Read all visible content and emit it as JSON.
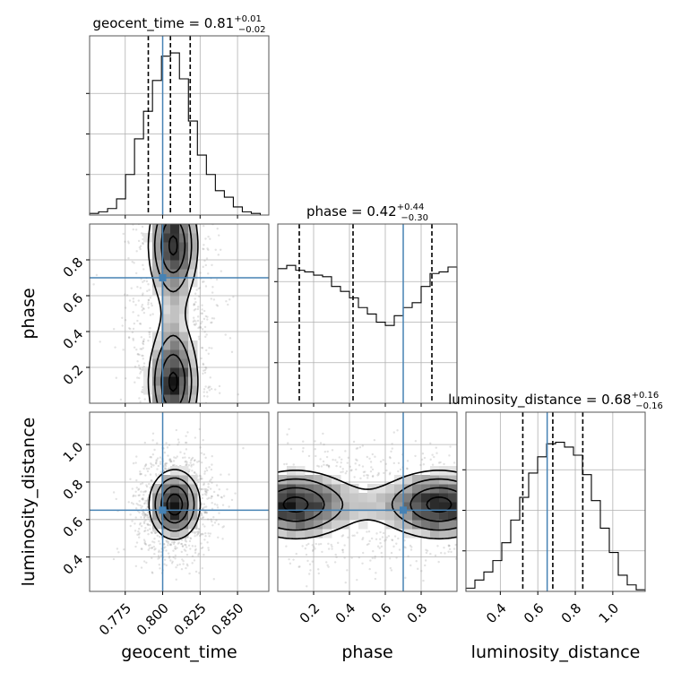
{
  "chart_data": {
    "type": "corner",
    "parameters": [
      "geocent_time",
      "phase",
      "luminosity_distance"
    ],
    "truths": [
      0.8,
      0.7,
      0.65
    ],
    "colors": {
      "truth": "#4682b4",
      "line": "#000000",
      "grid": "#b0b0b0",
      "scatter": "#8c8c8c"
    },
    "grid": true,
    "ranges": {
      "geocent_time": [
        0.7512,
        0.8709
      ],
      "phase": [
        0.0,
        1.0
      ],
      "luminosity_distance": [
        0.2167,
        1.1727
      ]
    },
    "ticks": {
      "geocent_time": [
        {
          "v": 0.775,
          "label": "0.775"
        },
        {
          "v": 0.8,
          "label": "0.800"
        },
        {
          "v": 0.825,
          "label": "0.825"
        },
        {
          "v": 0.85,
          "label": "0.850"
        }
      ],
      "phase": [
        {
          "v": 0.2,
          "label": "0.2"
        },
        {
          "v": 0.4,
          "label": "0.4"
        },
        {
          "v": 0.6,
          "label": "0.6"
        },
        {
          "v": 0.8,
          "label": "0.8"
        }
      ],
      "luminosity_distance": [
        {
          "v": 0.4,
          "label": "0.4"
        },
        {
          "v": 0.6,
          "label": "0.6"
        },
        {
          "v": 0.8,
          "label": "0.8"
        },
        {
          "v": 1.0,
          "label": "1.0"
        }
      ]
    },
    "axis_labels": [
      "geocent_time",
      "phase",
      "luminosity_distance"
    ],
    "titles": [
      {
        "name": "geocent_time",
        "value": "0.81",
        "plus": "+0.01",
        "minus": "−0.02"
      },
      {
        "name": "phase",
        "value": "0.42",
        "plus": "+0.44",
        "minus": "−0.30"
      },
      {
        "name": "luminosity_distance",
        "value": "0.68",
        "plus": "+0.16",
        "minus": "−0.16"
      }
    ],
    "histograms": [
      {
        "parameter": "geocent_time",
        "edges": [
          0.7512,
          0.7572,
          0.7632,
          0.7692,
          0.7752,
          0.7812,
          0.7872,
          0.7932,
          0.7992,
          0.8052,
          0.8112,
          0.8172,
          0.8232,
          0.8292,
          0.8352,
          0.8412,
          0.8472,
          0.8532,
          0.8592,
          0.8652,
          0.8709
        ],
        "counts": [
          0.01,
          0.02,
          0.04,
          0.1,
          0.25,
          0.47,
          0.64,
          0.83,
          0.98,
          1.0,
          0.84,
          0.58,
          0.37,
          0.25,
          0.15,
          0.11,
          0.05,
          0.02,
          0.01,
          0.0
        ],
        "quantiles": [
          0.7904,
          0.8052,
          0.8184
        ]
      },
      {
        "parameter": "phase",
        "edges": [
          0.0,
          0.05,
          0.1,
          0.15,
          0.2,
          0.25,
          0.3,
          0.35,
          0.4,
          0.45,
          0.5,
          0.55,
          0.6,
          0.65,
          0.7,
          0.75,
          0.8,
          0.85,
          0.9,
          0.95,
          1.0
        ],
        "counts": [
          0.83,
          0.85,
          0.82,
          0.81,
          0.79,
          0.78,
          0.72,
          0.69,
          0.65,
          0.59,
          0.55,
          0.5,
          0.48,
          0.54,
          0.59,
          0.62,
          0.72,
          0.8,
          0.81,
          0.84
        ],
        "quantiles": [
          0.12,
          0.42,
          0.86
        ]
      },
      {
        "parameter": "luminosity_distance",
        "edges": [
          0.2167,
          0.2645,
          0.3123,
          0.3601,
          0.4079,
          0.4557,
          0.5035,
          0.5513,
          0.5991,
          0.6469,
          0.6947,
          0.7425,
          0.7903,
          0.8381,
          0.8859,
          0.9337,
          0.9815,
          1.0293,
          1.0771,
          1.1249,
          1.1727
        ],
        "counts": [
          0.02,
          0.07,
          0.12,
          0.19,
          0.3,
          0.44,
          0.58,
          0.73,
          0.83,
          0.91,
          0.92,
          0.89,
          0.84,
          0.72,
          0.56,
          0.39,
          0.24,
          0.1,
          0.04,
          0.01
        ],
        "quantiles": [
          0.52,
          0.68,
          0.84
        ]
      }
    ],
    "joint_2d": [
      {
        "x": "geocent_time",
        "y": "phase",
        "center": [
          0.807,
          0.5
        ],
        "sigma": [
          0.011,
          0.33
        ],
        "modes": [
          0.12,
          0.88
        ]
      },
      {
        "x": "geocent_time",
        "y": "luminosity_distance",
        "center": [
          0.808,
          0.68
        ],
        "sigma": [
          0.011,
          0.12
        ]
      },
      {
        "x": "phase",
        "y": "luminosity_distance",
        "center": [
          0.5,
          0.68
        ],
        "sigma": [
          0.33,
          0.12
        ],
        "modes": [
          0.1,
          0.9
        ]
      }
    ]
  }
}
